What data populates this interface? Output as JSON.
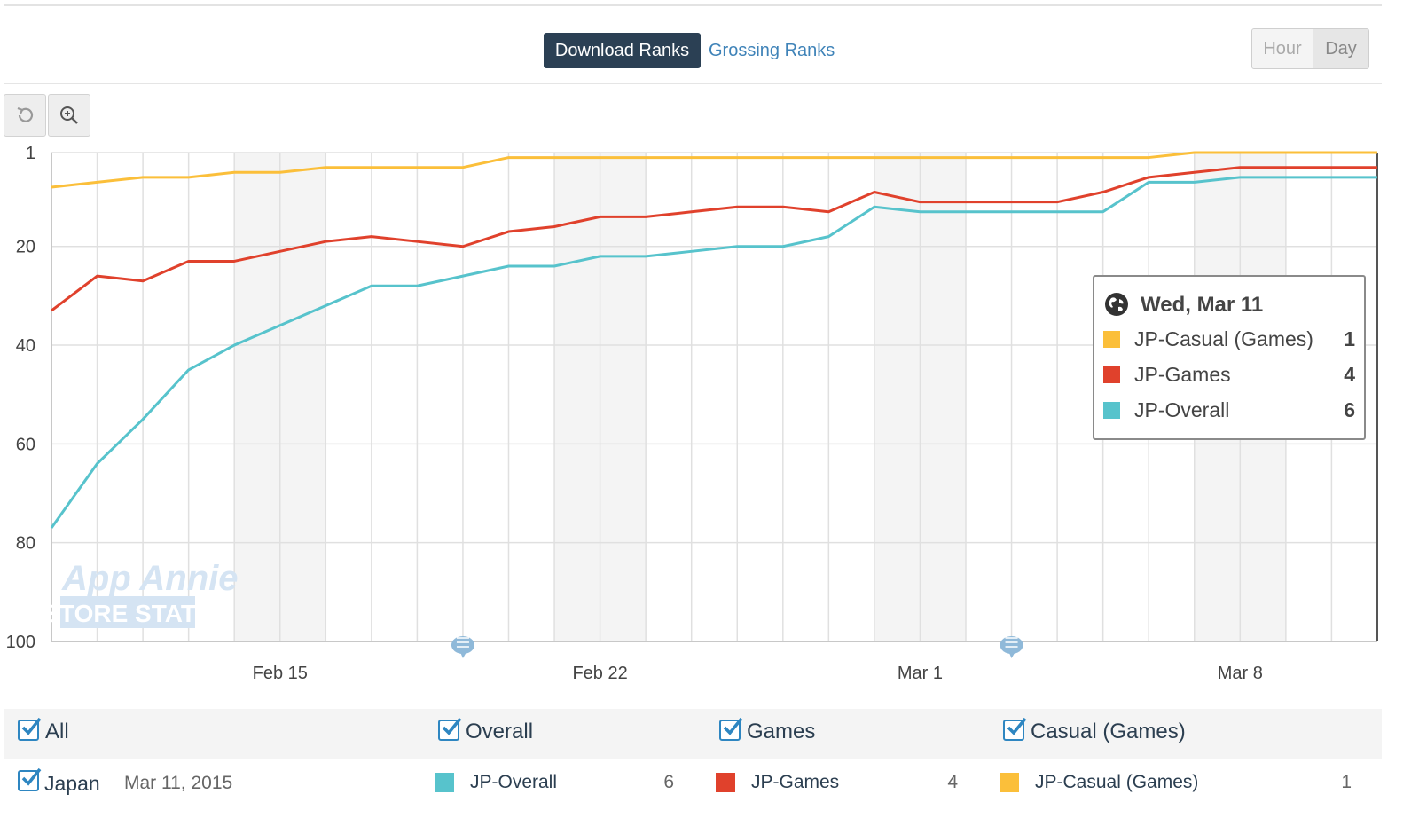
{
  "tabs": {
    "active": "Download Ranks",
    "inactive": "Grossing Ranks"
  },
  "granularity": {
    "hour": "Hour",
    "day": "Day",
    "selected": "Day"
  },
  "toolbar": {
    "reset_icon": "undo-icon",
    "zoom_icon": "zoom-in-icon"
  },
  "chart_data": {
    "type": "line",
    "y_reversed": true,
    "ylim": [
      100,
      1
    ],
    "y_ticks": [
      1,
      20,
      40,
      60,
      80,
      100
    ],
    "x_ticks": [
      "Feb 15",
      "Feb 22",
      "Mar 1",
      "Mar 8"
    ],
    "x": [
      "Feb 10",
      "Feb 11",
      "Feb 12",
      "Feb 13",
      "Feb 14",
      "Feb 15",
      "Feb 16",
      "Feb 17",
      "Feb 18",
      "Feb 19",
      "Feb 20",
      "Feb 21",
      "Feb 22",
      "Feb 23",
      "Feb 24",
      "Feb 25",
      "Feb 26",
      "Feb 27",
      "Feb 28",
      "Mar 1",
      "Mar 2",
      "Mar 3",
      "Mar 4",
      "Mar 5",
      "Mar 6",
      "Mar 7",
      "Mar 8",
      "Mar 9",
      "Mar 10",
      "Mar 11"
    ],
    "series": [
      {
        "name": "JP-Casual (Games)",
        "color": "#fbbf3a",
        "values": [
          8,
          7,
          6,
          6,
          5,
          5,
          4,
          4,
          4,
          4,
          2,
          2,
          2,
          2,
          2,
          2,
          2,
          2,
          2,
          2,
          2,
          2,
          2,
          2,
          2,
          1,
          1,
          1,
          1,
          1
        ]
      },
      {
        "name": "JP-Games",
        "color": "#e0412c",
        "values": [
          33,
          26,
          27,
          23,
          23,
          21,
          19,
          18,
          19,
          20,
          17,
          16,
          14,
          14,
          13,
          12,
          12,
          13,
          9,
          11,
          11,
          11,
          11,
          9,
          6,
          5,
          4,
          4,
          4,
          4
        ]
      },
      {
        "name": "JP-Overall",
        "color": "#57c3cc",
        "values": [
          77,
          64,
          55,
          45,
          40,
          36,
          32,
          28,
          28,
          26,
          24,
          24,
          22,
          22,
          21,
          20,
          20,
          18,
          12,
          13,
          13,
          13,
          13,
          13,
          7,
          7,
          6,
          6,
          6,
          6
        ]
      }
    ],
    "shaded_weekends": [
      [
        "Feb 14",
        "Feb 15"
      ],
      [
        "Feb 21",
        "Feb 22"
      ],
      [
        "Feb 28",
        "Mar 1"
      ],
      [
        "Mar 7",
        "Mar 8"
      ]
    ],
    "annotation_markers": [
      "Feb 19",
      "Mar 3"
    ],
    "watermark": {
      "line1": "App Annie",
      "line2": "STORE STATS"
    },
    "grid": true
  },
  "tooltip": {
    "date": "Wed, Mar 11",
    "icon": "globe-icon",
    "rows": [
      {
        "name": "JP-Casual (Games)",
        "value": "1",
        "color": "#fbbf3a"
      },
      {
        "name": "JP-Games",
        "value": "4",
        "color": "#e0412c"
      },
      {
        "name": "JP-Overall",
        "value": "6",
        "color": "#57c3cc"
      }
    ]
  },
  "legend": {
    "all": "All",
    "overall": "Overall",
    "games": "Games",
    "casual": "Casual (Games)"
  },
  "country_row": {
    "country": "Japan",
    "date": "Mar 11, 2015",
    "items": [
      {
        "name": "JP-Overall",
        "value": "6",
        "color": "#57c3cc"
      },
      {
        "name": "JP-Games",
        "value": "4",
        "color": "#e0412c"
      },
      {
        "name": "JP-Casual (Games)",
        "value": "1",
        "color": "#fbbf3a"
      }
    ]
  }
}
